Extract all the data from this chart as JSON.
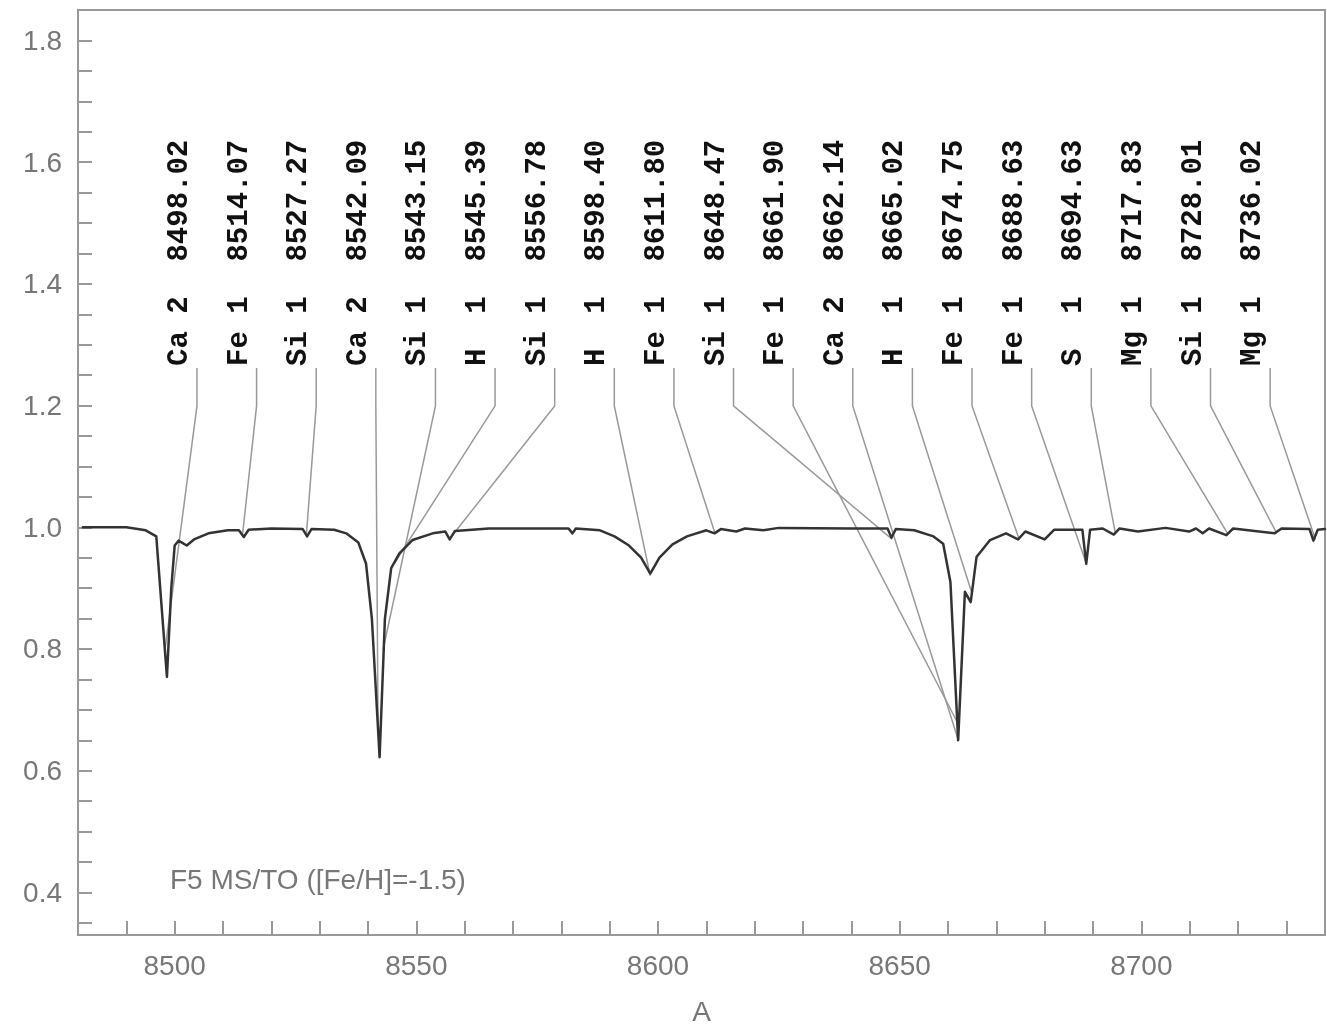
{
  "chart_data": {
    "type": "line",
    "xlabel": "A",
    "xlim": [
      8480,
      8738
    ],
    "ylim": [
      0.33,
      1.85
    ],
    "xticks": [
      {
        "value": 8490,
        "label": null
      },
      8500,
      {
        "value": 8510,
        "label": null
      },
      {
        "value": 8520,
        "label": null
      },
      {
        "value": 8530,
        "label": null
      },
      {
        "value": 8540,
        "label": null
      },
      8550,
      {
        "value": 8560,
        "label": null
      },
      {
        "value": 8570,
        "label": null
      },
      {
        "value": 8580,
        "label": null
      },
      {
        "value": 8590,
        "label": null
      },
      8600,
      {
        "value": 8610,
        "label": null
      },
      {
        "value": 8620,
        "label": null
      },
      {
        "value": 8630,
        "label": null
      },
      {
        "value": 8640,
        "label": null
      },
      8650,
      {
        "value": 8660,
        "label": null
      },
      {
        "value": 8670,
        "label": null
      },
      {
        "value": 8680,
        "label": null
      },
      {
        "value": 8690,
        "label": null
      },
      8700,
      {
        "value": 8710,
        "label": null
      },
      {
        "value": 8720,
        "label": null
      },
      {
        "value": 8730,
        "label": null
      }
    ],
    "yticks": [
      {
        "value": 0.35,
        "label": null
      },
      {
        "value": 0.4,
        "label": "0.4"
      },
      {
        "value": 0.45,
        "label": null
      },
      {
        "value": 0.5,
        "label": null
      },
      {
        "value": 0.55,
        "label": null
      },
      {
        "value": 0.6,
        "label": "0.6"
      },
      {
        "value": 0.65,
        "label": null
      },
      {
        "value": 0.7,
        "label": null
      },
      {
        "value": 0.75,
        "label": null
      },
      {
        "value": 0.8,
        "label": "0.8"
      },
      {
        "value": 0.85,
        "label": null
      },
      {
        "value": 0.9,
        "label": null
      },
      {
        "value": 0.95,
        "label": null
      },
      {
        "value": 1.0,
        "label": "1.0"
      },
      {
        "value": 1.05,
        "label": null
      },
      {
        "value": 1.1,
        "label": null
      },
      {
        "value": 1.15,
        "label": null
      },
      {
        "value": 1.2,
        "label": "1.2"
      },
      {
        "value": 1.25,
        "label": null
      },
      {
        "value": 1.3,
        "label": null
      },
      {
        "value": 1.35,
        "label": null
      },
      {
        "value": 1.4,
        "label": "1.4"
      },
      {
        "value": 1.45,
        "label": null
      },
      {
        "value": 1.5,
        "label": null
      },
      {
        "value": 1.55,
        "label": null
      },
      {
        "value": 1.6,
        "label": "1.6"
      },
      {
        "value": 1.65,
        "label": null
      },
      {
        "value": 1.7,
        "label": null
      },
      {
        "value": 1.75,
        "label": null
      },
      {
        "value": 1.8,
        "label": "1.8"
      }
    ],
    "grid": false,
    "marker": "none",
    "line_style": "solid",
    "series": [
      {
        "color": "#333333",
        "x": [
          8481,
          8490,
          8494,
          8496.2,
          8497.2,
          8498.4,
          8499.3,
          8500,
          8500.8,
          8502.5,
          8504,
          8507,
          8511,
          8513.3,
          8514.3,
          8515.3,
          8520,
          8526.5,
          8527.4,
          8528.3,
          8533,
          8535.5,
          8538,
          8539.6,
          8540.8,
          8542.4,
          8543.5,
          8544.8,
          8546.5,
          8549.2,
          8553.4,
          8556,
          8556.9,
          8558,
          8565,
          8575,
          8581.5,
          8582.3,
          8583,
          8588,
          8591,
          8594,
          8596.5,
          8598.4,
          8600.3,
          8603,
          8606,
          8610,
          8611.7,
          8613,
          8616.2,
          8618,
          8621.8,
          8625,
          8640,
          8647.5,
          8648.3,
          8649.2,
          8653,
          8657,
          8659,
          8660.5,
          8662.1,
          8663.5,
          8664.7,
          8665.9,
          8668.7,
          8672,
          8674.5,
          8676,
          8680,
          8682,
          8687.8,
          8688.6,
          8689.4,
          8692,
          8694.3,
          8695.5,
          8699.3,
          8705,
          8709.9,
          8711.3,
          8712.7,
          8714,
          8717.6,
          8719,
          8727.6,
          8729,
          8734.8,
          8735.6,
          8736.5,
          8738
        ],
        "values": [
          1.0,
          1.0,
          0.995,
          0.985,
          0.88,
          0.754,
          0.9,
          0.97,
          0.978,
          0.97,
          0.98,
          0.99,
          0.995,
          0.995,
          0.984,
          0.996,
          0.998,
          0.997,
          0.985,
          0.997,
          0.996,
          0.99,
          0.975,
          0.94,
          0.85,
          0.622,
          0.85,
          0.933,
          0.957,
          0.979,
          0.99,
          0.993,
          0.98,
          0.994,
          0.998,
          0.998,
          0.998,
          0.99,
          0.998,
          0.995,
          0.985,
          0.97,
          0.95,
          0.924,
          0.95,
          0.972,
          0.985,
          0.995,
          0.99,
          0.997,
          0.993,
          0.998,
          0.995,
          0.999,
          0.998,
          0.998,
          0.983,
          0.997,
          0.995,
          0.985,
          0.973,
          0.91,
          0.65,
          0.894,
          0.877,
          0.951,
          0.979,
          0.99,
          0.98,
          0.993,
          0.98,
          0.996,
          0.996,
          0.94,
          0.996,
          0.998,
          0.988,
          0.998,
          0.993,
          0.999,
          0.993,
          0.998,
          0.99,
          0.998,
          0.987,
          0.998,
          0.99,
          0.998,
          0.997,
          0.978,
          0.996,
          0.997
        ]
      }
    ],
    "annotations": [
      {
        "text": "Ca 2  8498.02",
        "x": 8498.02,
        "y": 0.8
      },
      {
        "text": "Fe 1  8514.07",
        "x": 8514.07,
        "y": 0.99
      },
      {
        "text": "Si 1  8527.27",
        "x": 8527.27,
        "y": 0.99
      },
      {
        "text": "Ca 2  8542.09",
        "x": 8542.09,
        "y": 0.66
      },
      {
        "text": "Si 1  8543.15",
        "x": 8543.15,
        "y": 0.8
      },
      {
        "text": "H  1  8545.39",
        "x": 8545.39,
        "y": 0.94
      },
      {
        "text": "Si 1  8556.78",
        "x": 8556.78,
        "y": 0.98
      },
      {
        "text": "H  1  8598.40",
        "x": 8598.4,
        "y": 0.92
      },
      {
        "text": "Fe 1  8611.80",
        "x": 8611.8,
        "y": 0.99
      },
      {
        "text": "Si 1  8648.47",
        "x": 8648.47,
        "y": 0.98
      },
      {
        "text": "Fe 1  8661.90",
        "x": 8661.9,
        "y": 0.68
      },
      {
        "text": "Ca 2  8662.14",
        "x": 8662.14,
        "y": 0.65
      },
      {
        "text": "H  1  8665.02",
        "x": 8665.02,
        "y": 0.89
      },
      {
        "text": "Fe 1  8674.75",
        "x": 8674.75,
        "y": 0.98
      },
      {
        "text": "Fe 1  8688.63",
        "x": 8688.63,
        "y": 0.94
      },
      {
        "text": "S  1  8694.63",
        "x": 8694.63,
        "y": 0.99
      },
      {
        "text": "Mg 1  8717.83",
        "x": 8717.83,
        "y": 0.99
      },
      {
        "text": "Si 1  8728.01",
        "x": 8728.01,
        "y": 0.99
      },
      {
        "text": "Mg 1  8736.02",
        "x": 8736.02,
        "y": 0.98
      },
      "F5 MS/TO ([Fe/H]=-1.5)"
    ]
  }
}
